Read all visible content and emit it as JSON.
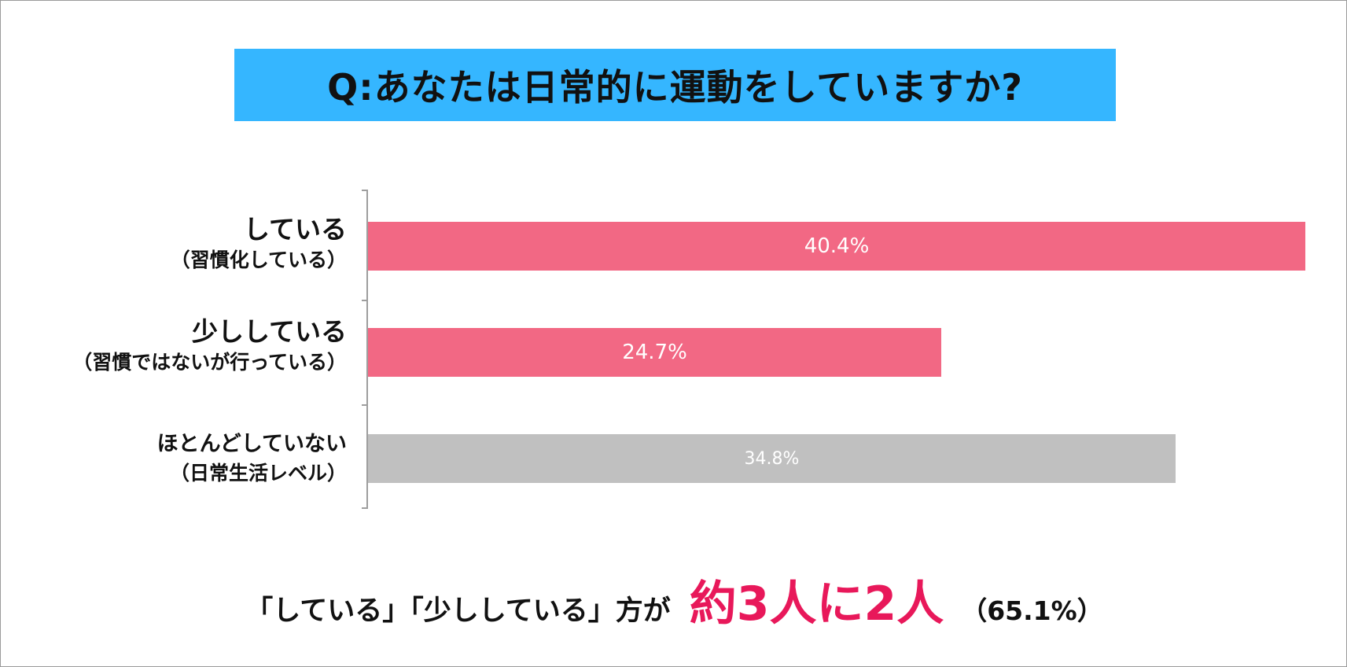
{
  "title": "Q:あなたは日常的に運動をしていますか?",
  "colors": {
    "title_band": "#35b6ff",
    "bar_pink": "#f26884",
    "bar_gray": "#c0c0c0",
    "highlight": "#e8185a"
  },
  "chart_data": {
    "type": "bar",
    "orientation": "horizontal",
    "categories": [
      "している（習慣化している）",
      "少ししている（習慣ではないが行っている）",
      "ほとんどしていない（日常生活レベル）"
    ],
    "labels": [
      {
        "main": "している",
        "sub": "（習慣化している）"
      },
      {
        "main": "少ししている",
        "sub": "（習慣ではないが行っている）"
      },
      {
        "main": "ほとんどしていない",
        "sub": "（日常生活レベル）"
      }
    ],
    "values": [
      40.4,
      24.7,
      34.8
    ],
    "value_labels": [
      "40.4%",
      "24.7%",
      "34.8%"
    ],
    "bar_colors": [
      "#f26884",
      "#f26884",
      "#c0c0c0"
    ],
    "xlim": [
      0,
      40.4
    ],
    "grid": false,
    "legend": "none"
  },
  "conclusion": {
    "prefix": "「している」「少ししている」方が",
    "highlight": "約3人に2人",
    "suffix": "（65.1%）"
  }
}
